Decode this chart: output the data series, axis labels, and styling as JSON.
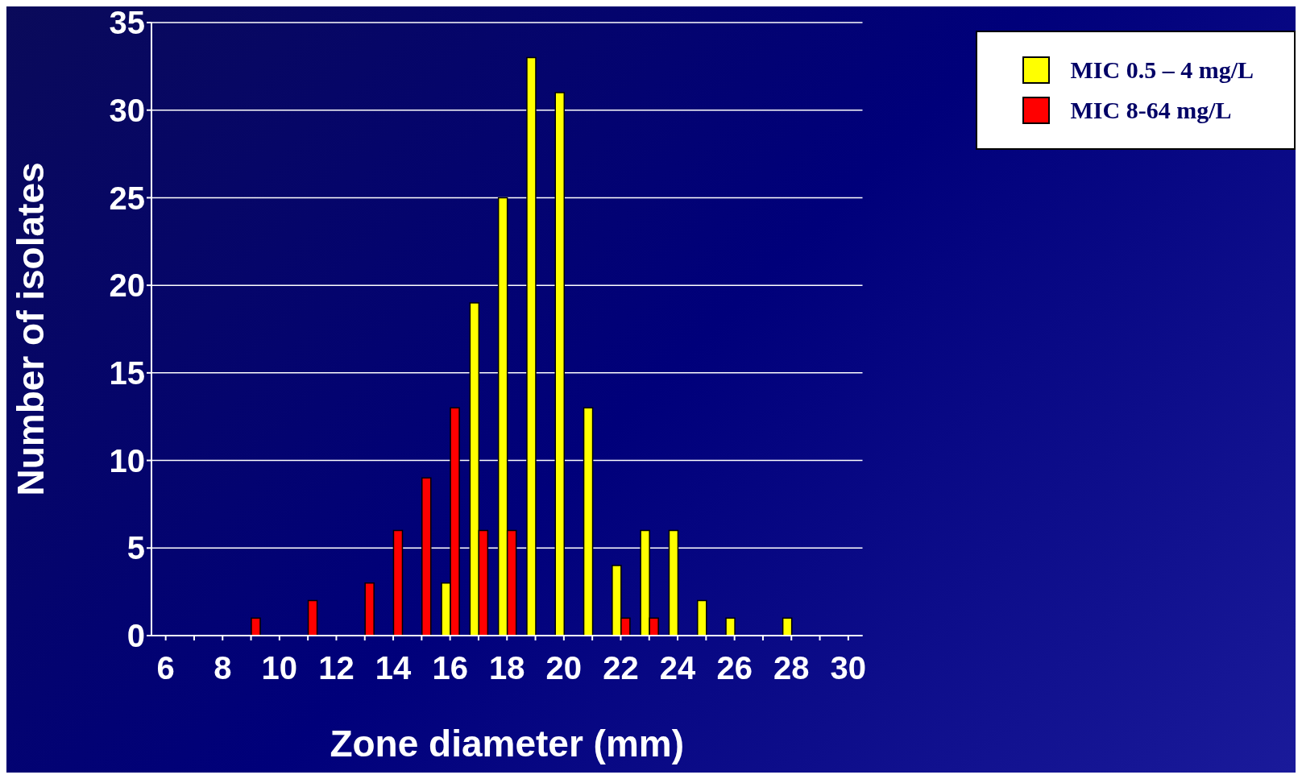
{
  "chart_data": {
    "type": "bar",
    "xlabel": "Zone diameter (mm)",
    "ylabel": "Number of isolates",
    "categories": [
      "6",
      null,
      "8",
      null,
      "10",
      null,
      "12",
      null,
      "14",
      null,
      "16",
      null,
      "18",
      null,
      "20",
      null,
      "22",
      null,
      "24",
      null,
      "26",
      null,
      "28",
      null,
      "30"
    ],
    "series": [
      {
        "name": "MIC 0.5 – 4 mg/L",
        "color": "#ffff00",
        "values": [
          null,
          null,
          null,
          null,
          null,
          null,
          null,
          null,
          null,
          null,
          3,
          19,
          25,
          33,
          31,
          13,
          4,
          6,
          6,
          2,
          1,
          null,
          1,
          null,
          null
        ]
      },
      {
        "name": "MIC 8-64 mg/L",
        "color": "#ff0000",
        "values": [
          null,
          null,
          null,
          1,
          null,
          2,
          null,
          3,
          6,
          9,
          13,
          6,
          6,
          null,
          null,
          null,
          1,
          1,
          null,
          null,
          null,
          null,
          null,
          null,
          null
        ]
      }
    ],
    "ylim": [
      0,
      35
    ],
    "yticks": [
      0,
      5,
      10,
      15,
      20,
      25,
      30,
      35
    ],
    "grid": "y",
    "legend": "top right"
  }
}
